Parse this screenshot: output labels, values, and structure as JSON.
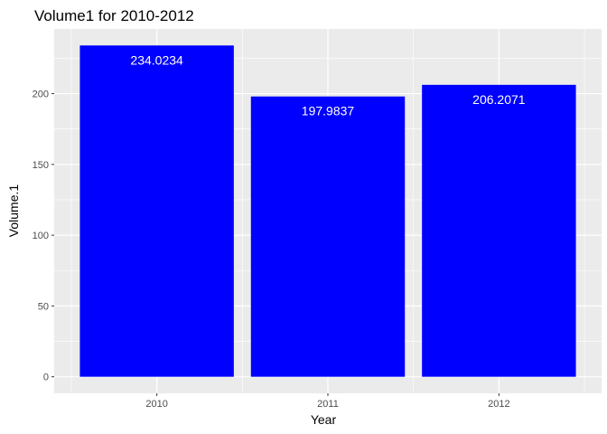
{
  "chart_data": {
    "type": "bar",
    "title": "Volume1 for 2010-2012",
    "xlabel": "Year",
    "ylabel": "Volume.1",
    "categories": [
      "2010",
      "2011",
      "2012"
    ],
    "values": [
      234.0234,
      197.9837,
      206.2071
    ],
    "data_labels": [
      "234.0234",
      "197.9837",
      "206.2071"
    ],
    "ylim": [
      -11.7,
      245.7
    ],
    "yticks": [
      0,
      50,
      100,
      150,
      200
    ],
    "ytick_labels": [
      "0",
      "50",
      "100",
      "150",
      "200"
    ],
    "bar_color": "#0000FF",
    "panel_background": "#EBEBEB",
    "grid_color": "#FFFFFF",
    "data_label_color": "#FFFFFF",
    "grid": true,
    "legend": "none"
  }
}
